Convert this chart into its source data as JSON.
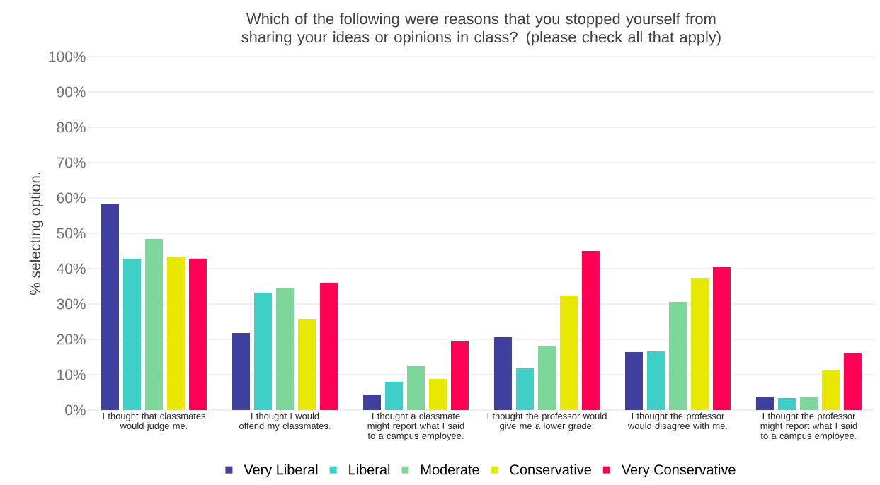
{
  "chart_data": {
    "type": "bar",
    "title": "Which of the following were reasons that you stopped yourself from sharing your ideas or opinions in class? (please check all that apply)",
    "ylabel": "% selecting option.",
    "categories": [
      "I thought that classmates would judge me.",
      "I thought I would offend my classmates.",
      "I thought a classmate might report what I said to a campus employee.",
      "I thought the professor would give me a lower grade.",
      "I thought the professor would disagree with me.",
      "I thought the professor might report what I said to a campus employee."
    ],
    "series": [
      {
        "name": "Very Liberal",
        "color": "#3f3f9f",
        "values": [
          58.4,
          21.8,
          4.4,
          20.6,
          16.4,
          3.8
        ]
      },
      {
        "name": "Liberal",
        "color": "#3ecfc8",
        "values": [
          42.8,
          33.2,
          8,
          11.8,
          16.6,
          3.4
        ]
      },
      {
        "name": "Moderate",
        "color": "#7dd69a",
        "values": [
          48.4,
          34.4,
          12.6,
          18,
          30.6,
          3.8
        ]
      },
      {
        "name": "Conservative",
        "color": "#e8e800",
        "values": [
          43.4,
          25.8,
          8.8,
          32.4,
          37.4,
          11.4
        ]
      },
      {
        "name": "Very Conservative",
        "color": "#ff0055",
        "values": [
          42.8,
          36,
          19.4,
          45,
          40.4,
          16
        ]
      }
    ],
    "ylim": [
      0,
      100
    ],
    "yticks": [
      {
        "value": 0,
        "label": "0%"
      },
      {
        "value": 10,
        "label": "10%"
      },
      {
        "value": 20,
        "label": "20%"
      },
      {
        "value": 30,
        "label": "30%"
      },
      {
        "value": 40,
        "label": "40%"
      },
      {
        "value": 50,
        "label": "50%"
      },
      {
        "value": 60,
        "label": "60%"
      },
      {
        "value": 70,
        "label": "70%"
      },
      {
        "value": 80,
        "label": "80%"
      },
      {
        "value": 90,
        "label": "90%"
      },
      {
        "value": 100,
        "label": "100%"
      }
    ],
    "grid": "y",
    "legend": "bottom"
  }
}
